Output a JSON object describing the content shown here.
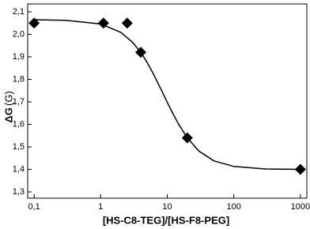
{
  "chart_data": {
    "type": "scatter",
    "x_label": "[HS-C8-TEG]/[HS-F8-PEG]",
    "y_label": "ΔG",
    "y_unit": "(G)",
    "x_log": true,
    "xlim": [
      0.08,
      1250
    ],
    "ylim": [
      1.272,
      2.135
    ],
    "xticks": [
      {
        "value": 0.1,
        "label": "0,1"
      },
      1,
      10,
      100,
      1000
    ],
    "yticks": [
      {
        "value": 1.3,
        "label": "1,3"
      },
      {
        "value": 1.4,
        "label": "1,4"
      },
      {
        "value": 1.5,
        "label": "1,5"
      },
      {
        "value": 1.6,
        "label": "1,6"
      },
      {
        "value": 1.7,
        "label": "1,7"
      },
      {
        "value": 1.8,
        "label": "1,8"
      },
      {
        "value": 1.9,
        "label": "1,9"
      },
      {
        "value": 2.0,
        "label": "2,0"
      },
      {
        "value": 2.1,
        "label": "2,1"
      }
    ],
    "series": [
      {
        "mode": "markers",
        "color": "#000000",
        "x": [
          0.1,
          1.1,
          2.5,
          4,
          20,
          1000
        ],
        "values": [
          2.05,
          2.05,
          2.05,
          1.92,
          1.54,
          1.4
        ]
      },
      {
        "mode": "line",
        "color": "#000000",
        "x": [
          0.1,
          0.3,
          1,
          2,
          3,
          4,
          5,
          6,
          8,
          10,
          12,
          15,
          20,
          30,
          50,
          100,
          300,
          1000
        ],
        "values": [
          2.065,
          2.062,
          2.046,
          2.009,
          1.965,
          1.92,
          1.874,
          1.832,
          1.758,
          1.698,
          1.651,
          1.598,
          1.54,
          1.481,
          1.438,
          1.413,
          1.402,
          1.4
        ]
      }
    ]
  }
}
